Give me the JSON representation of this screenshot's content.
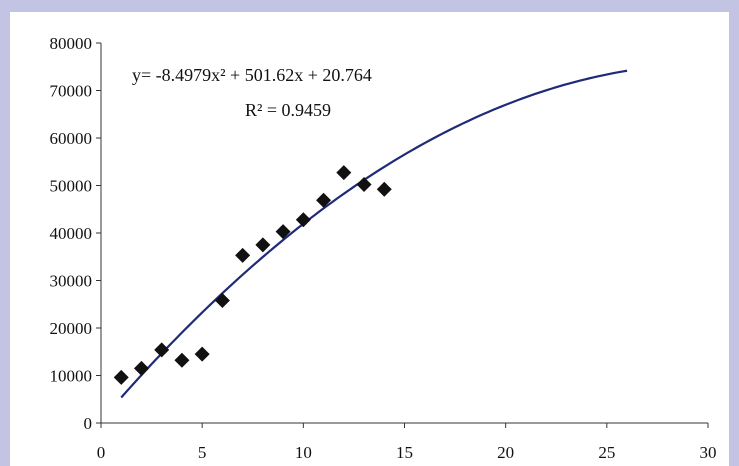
{
  "chart_data": {
    "type": "scatter",
    "title": "",
    "xlabel": "",
    "ylabel": "",
    "xlim": [
      0,
      30
    ],
    "ylim": [
      0,
      80000
    ],
    "x_ticks": [
      0,
      5,
      10,
      15,
      20,
      25,
      30
    ],
    "y_ticks": [
      0,
      10000,
      20000,
      30000,
      40000,
      50000,
      60000,
      70000,
      80000
    ],
    "grid": false,
    "legend": "none",
    "points": [
      {
        "x": 1,
        "y": 9600
      },
      {
        "x": 2,
        "y": 11500
      },
      {
        "x": 3,
        "y": 15400
      },
      {
        "x": 4,
        "y": 13200
      },
      {
        "x": 5,
        "y": 14500
      },
      {
        "x": 6,
        "y": 25800
      },
      {
        "x": 7,
        "y": 35300
      },
      {
        "x": 8,
        "y": 37500
      },
      {
        "x": 9,
        "y": 40300
      },
      {
        "x": 10,
        "y": 42800
      },
      {
        "x": 11,
        "y": 46900
      },
      {
        "x": 12,
        "y": 52700
      },
      {
        "x": 13,
        "y": 50200
      },
      {
        "x": 14,
        "y": 49200
      }
    ],
    "trendline": {
      "type": "polynomial",
      "x_range": [
        1,
        26
      ],
      "color": "#1f2a78"
    },
    "marker_color": "#111111",
    "annotations": {
      "equation": "y= -8.4979x² + 501.62x + 20.764",
      "r_squared": "R² = 0.9459"
    }
  }
}
